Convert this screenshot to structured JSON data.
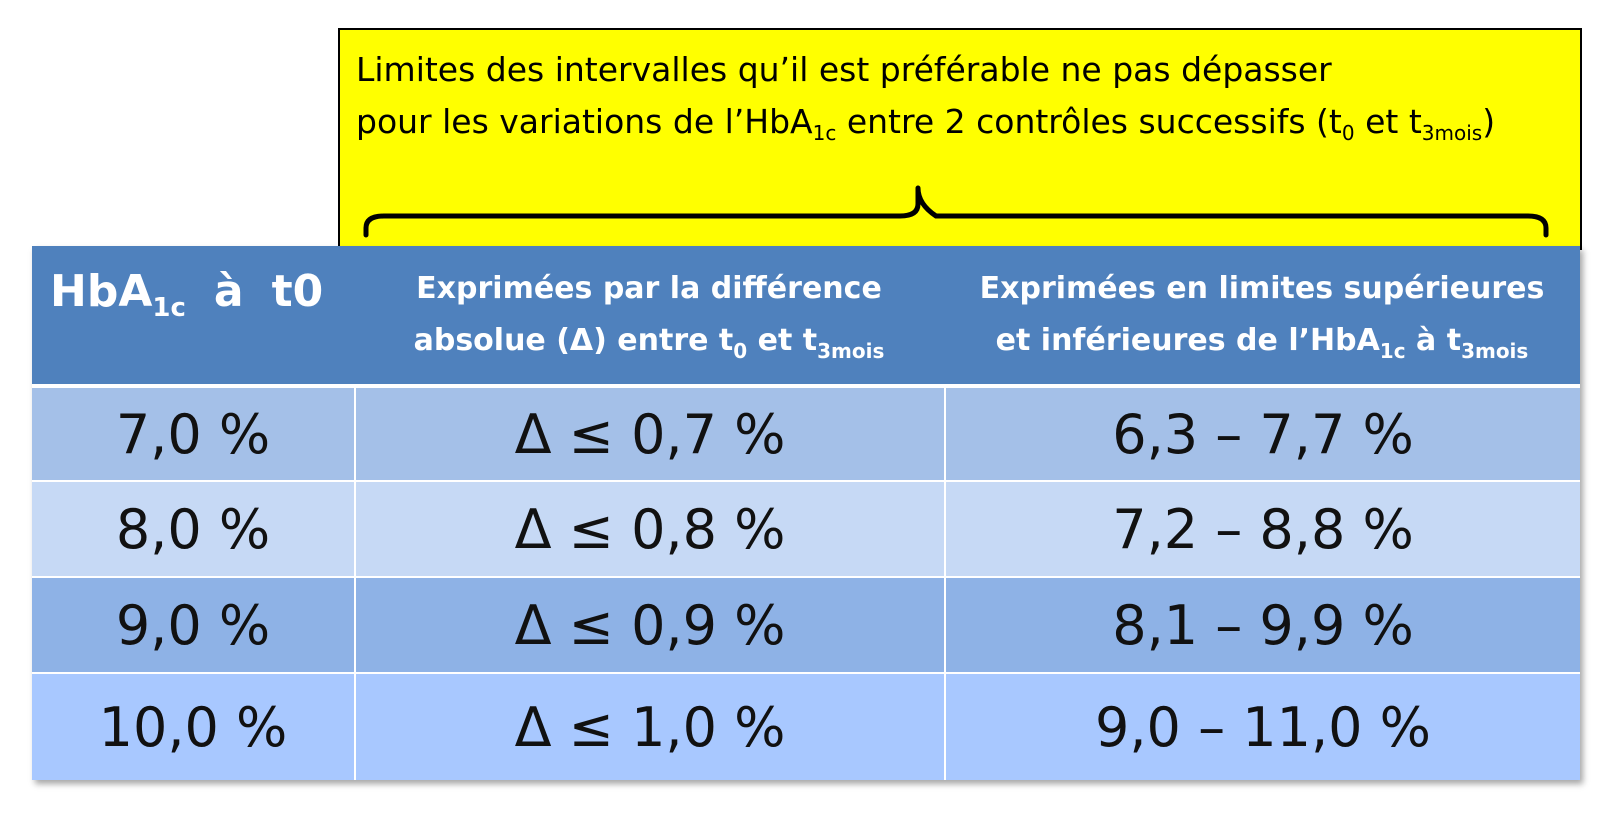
{
  "callout": {
    "line1": "Limites des intervalles qu’il est préférable ne pas dépasser",
    "line2_a": "pour les variations de l’HbA",
    "line2_sub1": "1c",
    "line2_b": " entre 2 contrôles successifs (t",
    "line2_sub2": "0",
    "line2_c": " et t",
    "line2_sub3": "3mois",
    "line2_d": ")",
    "background": "#ffff00"
  },
  "table": {
    "header_background": "#4f81bd",
    "header": {
      "col1_a": "HbA",
      "col1_sub": "1c",
      "col1_b": "à",
      "col1_c": "t0",
      "col2_line1": "Exprimées par la différence",
      "col2_line2_a": "absolue (Δ) entre t",
      "col2_line2_sub1": "0",
      "col2_line2_b": " et t",
      "col2_line2_sub2": "3mois",
      "col3_line1": "Exprimées en limites supérieures",
      "col3_line2_a": "et inférieures de l’HbA",
      "col3_line2_sub1": "1c",
      "col3_line2_b": " à t",
      "col3_line2_sub2": "3mois"
    },
    "rows": [
      {
        "hba1c": "7,0 %",
        "delta": "Δ ≤ 0,7 %",
        "range": "6,3 – 7,7 %"
      },
      {
        "hba1c": "8,0 %",
        "delta": "Δ ≤ 0,8 %",
        "range": "7,2 – 8,8 %"
      },
      {
        "hba1c": "9,0 %",
        "delta": "Δ ≤ 0,9 %",
        "range": "8,1 – 9,9 %"
      },
      {
        "hba1c": "10,0 %",
        "delta": "Δ ≤ 1,0 %",
        "range": "9,0 – 11,0 %"
      }
    ]
  }
}
